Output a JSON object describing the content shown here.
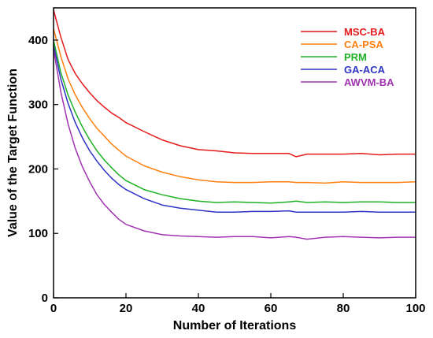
{
  "chart_data": {
    "type": "line",
    "xlabel": "Number of Iterations",
    "ylabel": "Value of the Target Function",
    "xlim": [
      0,
      100
    ],
    "ylim": [
      0,
      450
    ],
    "xticks": [
      "0",
      "20",
      "40",
      "60",
      "80",
      "100"
    ],
    "yticks": [
      "0",
      "100",
      "200",
      "300",
      "400"
    ],
    "legend_position": "top-right",
    "grid": false,
    "x": [
      0,
      2,
      4,
      6,
      8,
      10,
      12,
      14,
      16,
      18,
      20,
      25,
      30,
      35,
      40,
      45,
      50,
      55,
      60,
      65,
      67,
      70,
      75,
      80,
      85,
      90,
      95,
      100
    ],
    "series": [
      {
        "name": "MSC-BA",
        "color": "#e41a1c",
        "values": [
          447,
          405,
          370,
          348,
          332,
          318,
          306,
          296,
          287,
          280,
          272,
          258,
          245,
          236,
          230,
          228,
          225,
          224,
          224,
          224,
          219,
          223,
          223,
          223,
          224,
          222,
          223,
          223
        ]
      },
      {
        "name": "CA-PSA",
        "color": "#ff7f0e",
        "values": [
          418,
          375,
          340,
          315,
          295,
          278,
          263,
          251,
          239,
          229,
          220,
          205,
          195,
          188,
          183,
          180,
          179,
          179,
          180,
          180,
          179,
          179,
          178,
          180,
          179,
          179,
          179,
          180
        ]
      },
      {
        "name": "PRM",
        "color": "#1fb124",
        "values": [
          400,
          350,
          315,
          288,
          265,
          245,
          228,
          214,
          202,
          191,
          182,
          168,
          160,
          154,
          150,
          148,
          149,
          148,
          147,
          149,
          150,
          148,
          149,
          148,
          149,
          149,
          148,
          148
        ]
      },
      {
        "name": "GA-ACA",
        "color": "#2f33c4",
        "values": [
          392,
          340,
          302,
          272,
          248,
          228,
          212,
          198,
          186,
          176,
          168,
          154,
          144,
          139,
          136,
          133,
          133,
          134,
          134,
          135,
          133,
          133,
          133,
          133,
          134,
          133,
          133,
          133
        ]
      },
      {
        "name": "AWVM-BA",
        "color": "#a033b0",
        "values": [
          386,
          320,
          270,
          232,
          203,
          180,
          160,
          145,
          133,
          122,
          114,
          104,
          98,
          96,
          95,
          94,
          95,
          95,
          93,
          95,
          94,
          91,
          94,
          95,
          94,
          93,
          94,
          94
        ]
      }
    ]
  }
}
